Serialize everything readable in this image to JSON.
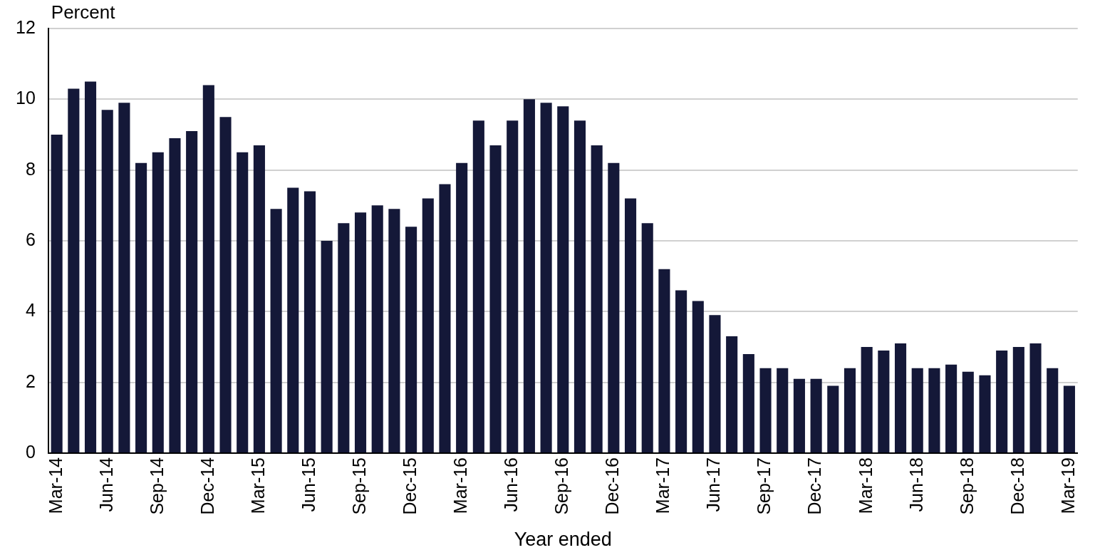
{
  "chart_data": {
    "type": "bar",
    "ylabel": "Percent",
    "xlabel": "Year ended",
    "categories": [
      "Mar-14",
      null,
      null,
      "Jun-14",
      null,
      null,
      "Sep-14",
      null,
      null,
      "Dec-14",
      null,
      null,
      "Mar-15",
      null,
      null,
      "Jun-15",
      null,
      null,
      "Sep-15",
      null,
      null,
      "Dec-15",
      null,
      null,
      "Mar-16",
      null,
      null,
      "Jun-16",
      null,
      null,
      "Sep-16",
      null,
      null,
      "Dec-16",
      null,
      null,
      "Mar-17",
      null,
      null,
      "Jun-17",
      null,
      null,
      "Sep-17",
      null,
      null,
      "Dec-17",
      null,
      null,
      "Mar-18",
      null,
      null,
      "Jun-18",
      null,
      null,
      "Sep-18",
      null,
      null,
      "Dec-18",
      null,
      null,
      "Mar-19"
    ],
    "values": [
      9.0,
      10.3,
      10.5,
      9.7,
      9.9,
      8.2,
      8.5,
      8.9,
      9.1,
      10.4,
      9.5,
      8.5,
      8.7,
      6.9,
      7.5,
      7.4,
      6.0,
      6.5,
      6.8,
      7.0,
      6.9,
      6.4,
      7.2,
      7.6,
      8.2,
      9.4,
      8.7,
      9.4,
      10.0,
      9.9,
      9.8,
      9.4,
      8.7,
      8.2,
      7.2,
      6.5,
      5.2,
      4.6,
      4.3,
      3.9,
      3.3,
      2.8,
      2.4,
      2.4,
      2.1,
      2.1,
      1.9,
      2.4,
      3.0,
      2.9,
      3.1,
      2.4,
      2.4,
      2.5,
      2.3,
      2.2,
      2.9,
      3.0,
      3.1,
      2.4,
      1.9
    ],
    "color": "#141838",
    "ylim": [
      0,
      12
    ],
    "yticks": [
      0,
      2,
      4,
      6,
      8,
      10,
      12
    ],
    "grid": "y",
    "legend": false
  }
}
